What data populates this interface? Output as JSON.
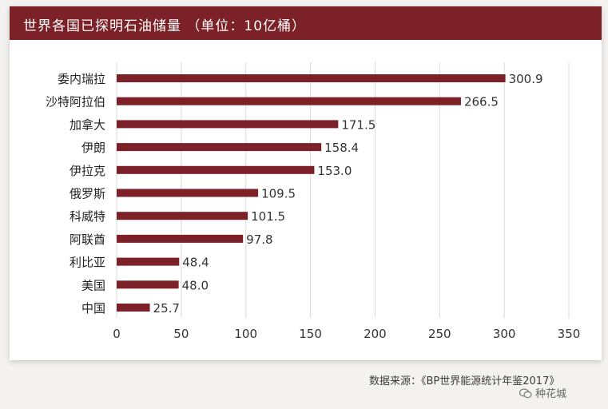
{
  "chart_data": {
    "type": "bar",
    "orientation": "horizontal",
    "title": "世界各国已探明石油储量 （单位：10亿桶）",
    "categories": [
      "委内瑞拉",
      "沙特阿拉伯",
      "加拿大",
      "伊朗",
      "伊拉克",
      "俄罗斯",
      "科威特",
      "阿联酋",
      "利比亚",
      "美国",
      "中国"
    ],
    "values": [
      300.9,
      266.5,
      171.5,
      158.4,
      153.0,
      109.5,
      101.5,
      97.8,
      48.4,
      48.0,
      25.7
    ],
    "value_labels": [
      "300.9",
      "266.5",
      "171.5",
      "158.4",
      "153.0",
      "109.5",
      "101.5",
      "97.8",
      "48.4",
      "48.0",
      "25.7"
    ],
    "xlim": [
      0,
      350
    ],
    "xticks": [
      "0",
      "50",
      "100",
      "150",
      "200",
      "250",
      "300",
      "350"
    ],
    "grid": true,
    "bar_color": "#7c2128"
  },
  "source": "数据来源：《BP世界能源统计年鉴2017》",
  "watermark": "种花城",
  "colors": {
    "header": "#7c2128",
    "bar": "#7c2128",
    "grid": "#d9d9d9"
  }
}
